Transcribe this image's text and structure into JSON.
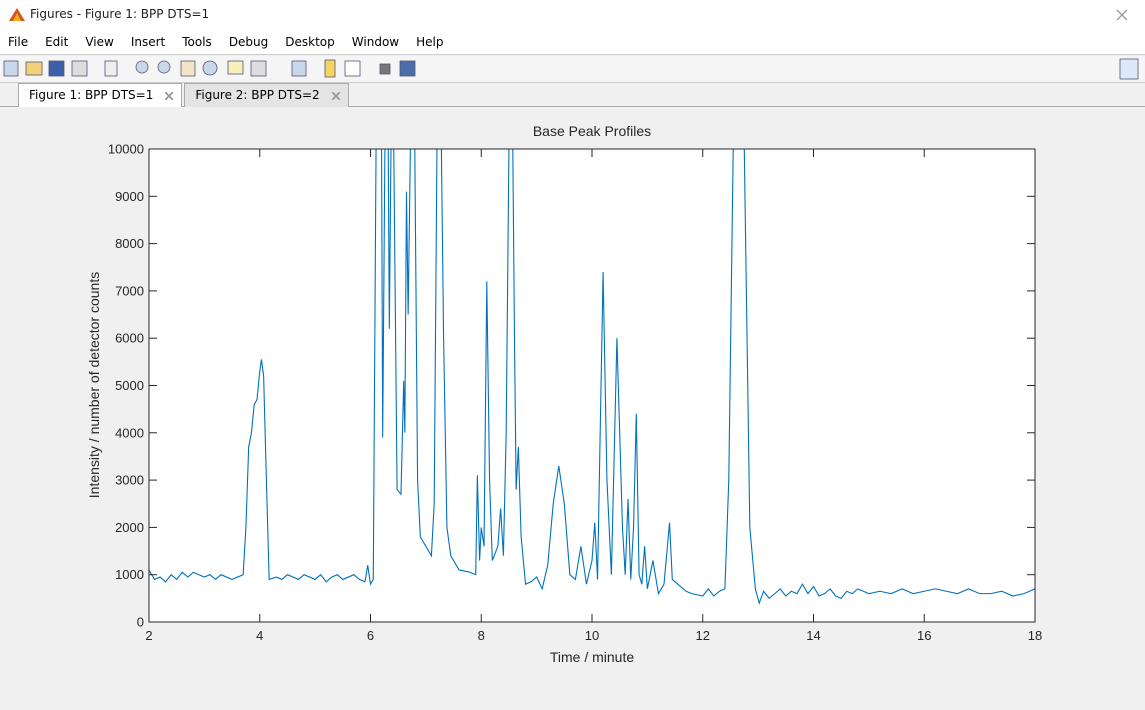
{
  "window": {
    "title": "Figures - Figure 1: BPP DTS=1"
  },
  "menu": [
    "File",
    "Edit",
    "View",
    "Insert",
    "Tools",
    "Debug",
    "Desktop",
    "Window",
    "Help"
  ],
  "tabs": [
    "Figure 1: BPP DTS=1",
    "Figure 2: BPP DTS=2"
  ],
  "chart_data": {
    "type": "line",
    "title": "Base Peak Profiles",
    "x_label": "Time / minute",
    "y_label": "Intensity / number of detector counts",
    "xlim": [
      2,
      18
    ],
    "xticks": [
      2,
      4,
      6,
      8,
      10,
      12,
      14,
      16,
      18
    ],
    "ylim": [
      0,
      10000
    ],
    "yticks": [
      0,
      1000,
      2000,
      3000,
      4000,
      5000,
      6000,
      7000,
      8000,
      9000,
      10000
    ],
    "color": "#0072bd",
    "x": [
      2.0,
      2.1,
      2.2,
      2.3,
      2.4,
      2.5,
      2.6,
      2.7,
      2.8,
      2.9,
      3.0,
      3.1,
      3.2,
      3.3,
      3.4,
      3.5,
      3.6,
      3.7,
      3.75,
      3.8,
      3.85,
      3.9,
      3.95,
      4.0,
      4.03,
      4.07,
      4.12,
      4.17,
      4.3,
      4.4,
      4.5,
      4.6,
      4.7,
      4.8,
      4.9,
      5.0,
      5.1,
      5.2,
      5.3,
      5.4,
      5.5,
      5.6,
      5.7,
      5.8,
      5.9,
      5.95,
      6.0,
      6.05,
      6.1,
      6.2,
      6.22,
      6.26,
      6.32,
      6.34,
      6.37,
      6.42,
      6.48,
      6.55,
      6.6,
      6.62,
      6.65,
      6.68,
      6.72,
      6.8,
      6.85,
      6.9,
      7.0,
      7.1,
      7.15,
      7.2,
      7.28,
      7.32,
      7.38,
      7.45,
      7.6,
      7.8,
      7.9,
      7.93,
      7.97,
      8.0,
      8.05,
      8.1,
      8.15,
      8.2,
      8.3,
      8.35,
      8.4,
      8.45,
      8.5,
      8.57,
      8.6,
      8.63,
      8.67,
      8.72,
      8.8,
      8.9,
      9.0,
      9.1,
      9.2,
      9.3,
      9.4,
      9.5,
      9.6,
      9.7,
      9.8,
      9.9,
      10.0,
      10.05,
      10.1,
      10.2,
      10.27,
      10.35,
      10.45,
      10.55,
      10.6,
      10.65,
      10.7,
      10.75,
      10.8,
      10.85,
      10.9,
      10.95,
      11.0,
      11.1,
      11.2,
      11.3,
      11.4,
      11.45,
      11.55,
      11.7,
      11.8,
      12.0,
      12.1,
      12.2,
      12.3,
      12.4,
      12.47,
      12.55,
      12.75,
      12.85,
      12.95,
      13.02,
      13.1,
      13.2,
      13.3,
      13.4,
      13.5,
      13.6,
      13.7,
      13.8,
      13.9,
      14.0,
      14.1,
      14.2,
      14.3,
      14.4,
      14.5,
      14.6,
      14.7,
      14.8,
      14.9,
      15.0,
      15.2,
      15.4,
      15.6,
      15.8,
      16.0,
      16.2,
      16.4,
      16.6,
      16.8,
      17.0,
      17.2,
      17.4,
      17.6,
      17.8,
      18.0
    ],
    "values": [
      1100,
      900,
      950,
      850,
      1000,
      900,
      1050,
      950,
      1050,
      1000,
      950,
      1000,
      900,
      1000,
      950,
      900,
      950,
      1000,
      2000,
      3700,
      4000,
      4600,
      4700,
      5300,
      5550,
      5200,
      3000,
      900,
      950,
      900,
      1000,
      950,
      900,
      1000,
      950,
      900,
      1000,
      850,
      950,
      1000,
      900,
      950,
      1000,
      900,
      850,
      1200,
      800,
      900,
      10000,
      10000,
      3900,
      10000,
      10000,
      6200,
      10000,
      10000,
      2800,
      2700,
      5100,
      4000,
      9100,
      6500,
      10000,
      10000,
      3000,
      1800,
      1600,
      1400,
      2500,
      10000,
      10000,
      6000,
      2000,
      1400,
      1100,
      1050,
      1000,
      3100,
      1300,
      2000,
      1600,
      7200,
      3000,
      1300,
      1600,
      2400,
      1400,
      4000,
      10000,
      10000,
      6000,
      2800,
      3700,
      1800,
      800,
      850,
      950,
      700,
      1200,
      2500,
      3300,
      2500,
      1000,
      900,
      1600,
      800,
      1300,
      2100,
      900,
      7400,
      3000,
      1000,
      6000,
      2000,
      1000,
      2600,
      900,
      2000,
      4400,
      1000,
      800,
      1600,
      700,
      1300,
      600,
      800,
      2100,
      900,
      800,
      650,
      600,
      550,
      700,
      550,
      650,
      700,
      3000,
      10000,
      10000,
      2000,
      700,
      400,
      650,
      500,
      600,
      700,
      550,
      650,
      600,
      800,
      600,
      750,
      550,
      600,
      700,
      550,
      500,
      650,
      600,
      700,
      650,
      600,
      650,
      600,
      700,
      600,
      650,
      700,
      650,
      600,
      700,
      600,
      600,
      650,
      550,
      600,
      700
    ]
  }
}
